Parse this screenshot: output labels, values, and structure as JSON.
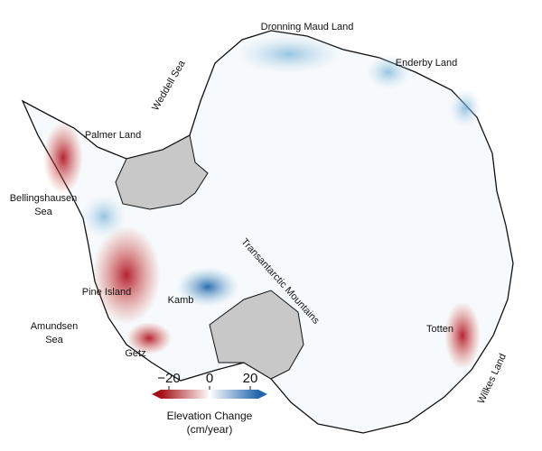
{
  "labels": [
    {
      "lines": [
        "Dronning Maud Land"
      ]
    },
    {
      "lines": [
        "Enderby Land"
      ]
    },
    {
      "lines": [
        "Weddell Sea"
      ]
    },
    {
      "lines": [
        "Palmer Land"
      ]
    },
    {
      "lines": [
        "Bellingshausen",
        "Sea"
      ]
    },
    {
      "lines": [
        "Pine Island"
      ]
    },
    {
      "lines": [
        "Amundsen",
        "Sea"
      ]
    },
    {
      "lines": [
        "Kamb"
      ]
    },
    {
      "lines": [
        "Getz"
      ]
    },
    {
      "lines": [
        "Transantarctic Mountains"
      ]
    },
    {
      "lines": [
        "Totten"
      ]
    },
    {
      "lines": [
        "Wilkes Land"
      ]
    }
  ],
  "colorbar": {
    "title": "Elevation Change",
    "unit": "(cm/year)",
    "lim": [
      -24,
      24
    ],
    "ticks": [
      {
        "value": -20,
        "label": "−20"
      },
      0,
      20
    ],
    "colors": [
      "#a50f15",
      "#ffffff",
      "#2166ac"
    ]
  }
}
